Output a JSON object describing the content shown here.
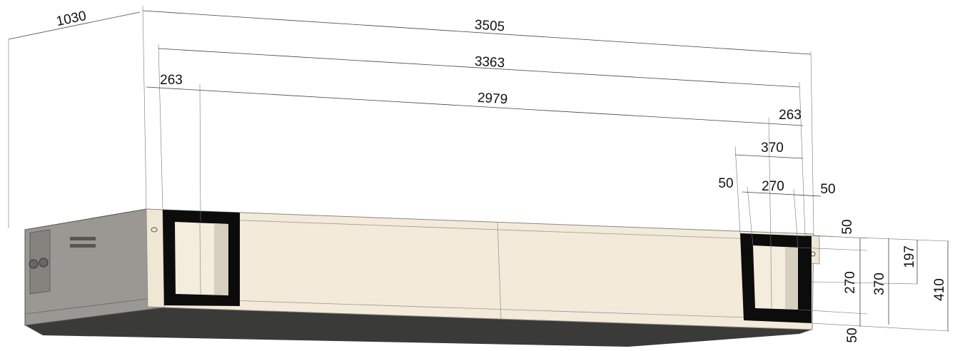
{
  "dimension_labels": [
    "1030",
    "3505",
    "3363",
    "263",
    "2979",
    "263",
    "370",
    "50",
    "270",
    "50",
    "50",
    "270",
    "370",
    "197",
    "410",
    "50"
  ]
}
